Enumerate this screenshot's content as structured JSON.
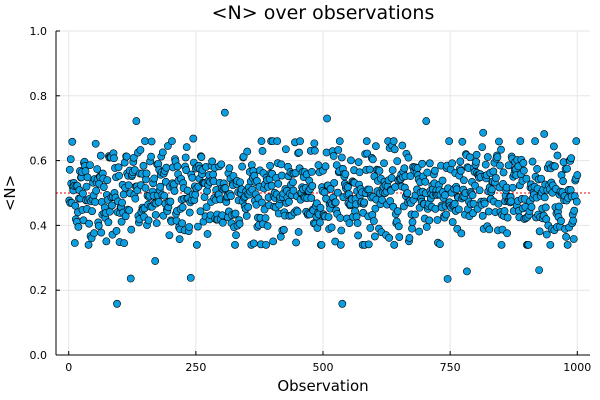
{
  "chart_data": {
    "type": "scatter",
    "title": "<N> over observations",
    "xlabel": "Observation",
    "ylabel": "<N>",
    "xlim": [
      -25,
      1025
    ],
    "ylim": [
      0.0,
      1.0
    ],
    "xticks": [
      0,
      250,
      500,
      750,
      1000
    ],
    "xtick_labels": [
      "0",
      "250",
      "500",
      "750",
      "1000"
    ],
    "yticks": [
      0.0,
      0.2,
      0.4,
      0.6,
      0.8,
      1.0
    ],
    "ytick_labels": [
      "0.0",
      "0.2",
      "0.4",
      "0.6",
      "0.8",
      "1.0"
    ],
    "grid": true,
    "legend": "none",
    "reference_line": {
      "y": 0.5,
      "style": "dotted",
      "color": "#e8000b"
    },
    "marker_color": "#0a9de0",
    "marker_edge_color": "#000000",
    "series": [
      {
        "n_points": 1000,
        "x_start": 1,
        "x_end": 1000,
        "mean": 0.5,
        "spread_sd": 0.075,
        "bulk_range": [
          0.34,
          0.66
        ],
        "outliers": [
          {
            "x": 7,
            "y": 0.658
          },
          {
            "x": 95,
            "y": 0.158
          },
          {
            "x": 122,
            "y": 0.236
          },
          {
            "x": 133,
            "y": 0.722
          },
          {
            "x": 170,
            "y": 0.29
          },
          {
            "x": 240,
            "y": 0.238
          },
          {
            "x": 245,
            "y": 0.668
          },
          {
            "x": 307,
            "y": 0.748
          },
          {
            "x": 508,
            "y": 0.73
          },
          {
            "x": 538,
            "y": 0.158
          },
          {
            "x": 703,
            "y": 0.722
          },
          {
            "x": 745,
            "y": 0.235
          },
          {
            "x": 783,
            "y": 0.258
          },
          {
            "x": 815,
            "y": 0.686
          },
          {
            "x": 925,
            "y": 0.262
          },
          {
            "x": 935,
            "y": 0.682
          }
        ]
      }
    ]
  }
}
